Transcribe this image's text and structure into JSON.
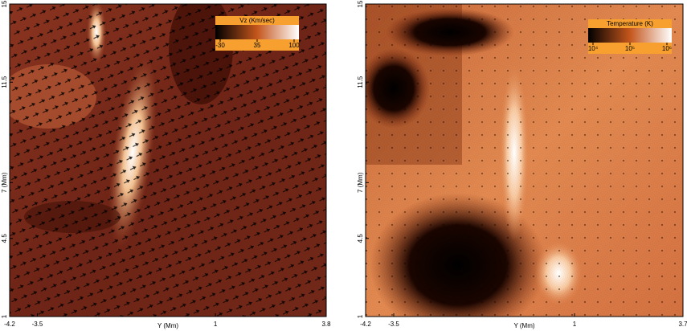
{
  "chart_data": [
    {
      "type": "heatmap",
      "xlabel": "Y (Mm)",
      "xlim": [
        -4.2,
        3.8
      ],
      "xticks": [
        -4.2,
        -3.5,
        1,
        3.8
      ],
      "ylim": [
        1,
        15
      ],
      "yticks": [
        1,
        4.5,
        {
          "value": 7,
          "label": "7 (Mm)"
        },
        11.5,
        15
      ],
      "colorbar": {
        "label": "Vz (Km/sec)",
        "lim": [
          -30,
          100
        ],
        "ticks": [
          -30,
          35,
          100
        ],
        "log": false,
        "colors": [
          "#000000",
          "#c4561c",
          "#ffffff"
        ]
      }
    },
    {
      "type": "heatmap",
      "xlabel": "Y (Mm)",
      "xlim": [
        -4.2,
        3.7
      ],
      "xticks": [
        -4.2,
        -3.5,
        1,
        3.7
      ],
      "ylim": [
        1,
        15
      ],
      "yticks": [
        1,
        4.5,
        {
          "value": 7,
          "label": "7 (Mm)"
        },
        11.5,
        15
      ],
      "colorbar": {
        "label": "Temperature (K)",
        "lim": [
          10000,
          1000000
        ],
        "ticks": [
          {
            "value": 10000,
            "label": "10⁴"
          },
          {
            "value": 100000,
            "label": "10⁵"
          },
          {
            "value": 1000000,
            "label": "10⁶"
          }
        ],
        "log": true,
        "colors": [
          "#000000",
          "#c4561c",
          "#ffffff"
        ]
      }
    }
  ]
}
